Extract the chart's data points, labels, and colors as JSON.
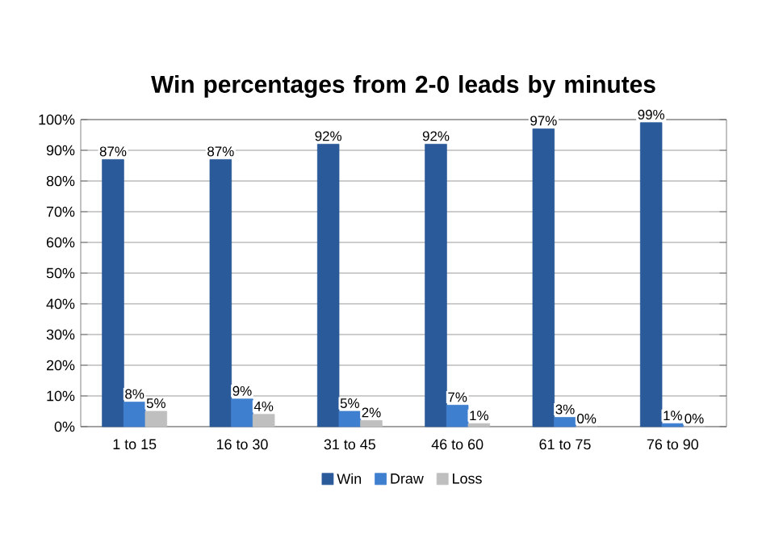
{
  "chart_data": {
    "type": "bar",
    "title": "Win percentages from 2-0 leads by minutes",
    "categories": [
      "1 to 15",
      "16 to 30",
      "31 to 45",
      "46 to 60",
      "61 to 75",
      "76 to 90"
    ],
    "series": [
      {
        "name": "Win",
        "color": "#2b5a9a",
        "values": [
          87,
          87,
          92,
          92,
          97,
          99
        ],
        "value_labels": [
          "87%",
          "87%",
          "92%",
          "92%",
          "97%",
          "99%"
        ]
      },
      {
        "name": "Draw",
        "color": "#3f7fcf",
        "values": [
          8,
          9,
          5,
          7,
          3,
          1
        ],
        "value_labels": [
          "8%",
          "9%",
          "5%",
          "7%",
          "3%",
          "1%"
        ]
      },
      {
        "name": "Loss",
        "color": "#bfbfbf",
        "values": [
          5,
          4,
          2,
          1,
          0,
          0
        ],
        "value_labels": [
          "5%",
          "4%",
          "2%",
          "1%",
          "0%",
          "0%"
        ]
      }
    ],
    "ylim": [
      0,
      100
    ],
    "yticks": [
      {
        "value": 0,
        "label": "0%"
      },
      {
        "value": 10,
        "label": "10%"
      },
      {
        "value": 20,
        "label": "20%"
      },
      {
        "value": 30,
        "label": "30%"
      },
      {
        "value": 40,
        "label": "40%"
      },
      {
        "value": 50,
        "label": "50%"
      },
      {
        "value": 60,
        "label": "60%"
      },
      {
        "value": 70,
        "label": "70%"
      },
      {
        "value": 80,
        "label": "80%"
      },
      {
        "value": 90,
        "label": "90%"
      },
      {
        "value": 100,
        "label": "100%"
      }
    ],
    "grid": "y",
    "legend": "bottom"
  }
}
